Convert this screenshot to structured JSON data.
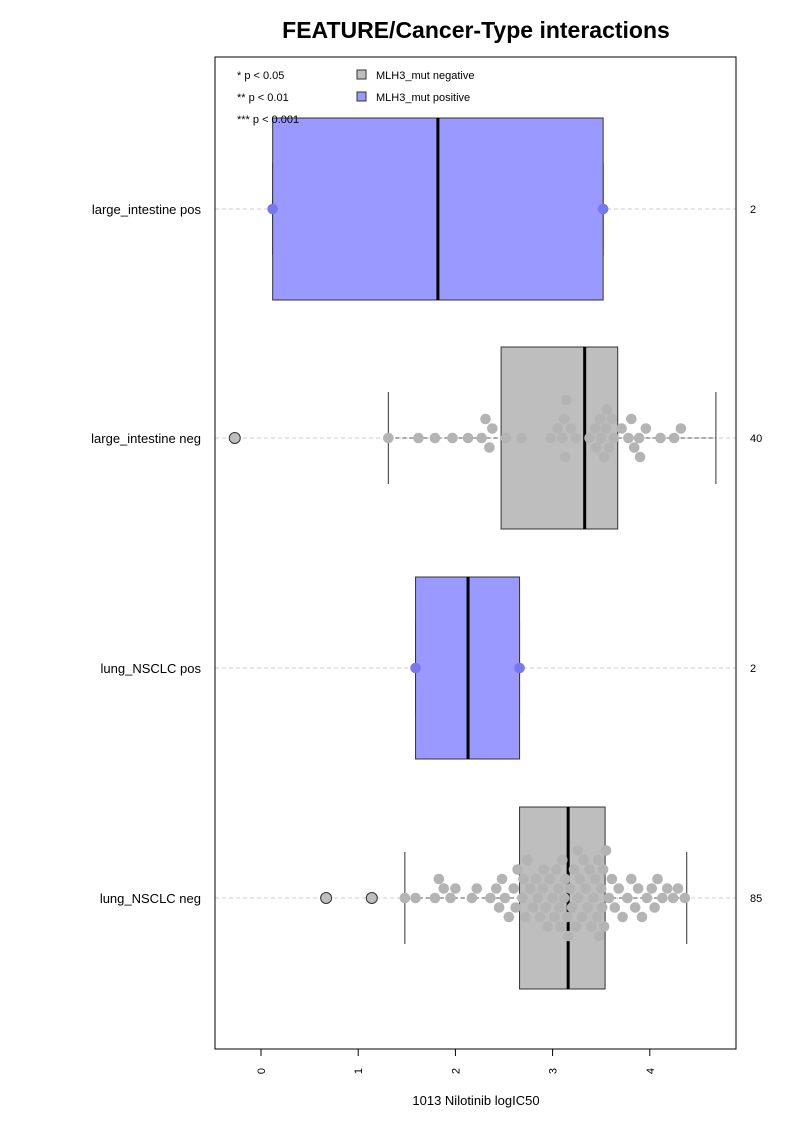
{
  "chart_data": {
    "type": "box",
    "title": "FEATURE/Cancer-Type interactions",
    "xlabel": "1013 Nilotinib logIC50",
    "ylabel": "",
    "xlim": [
      -0.5,
      4.9
    ],
    "xticks": [
      0,
      1,
      2,
      3,
      4
    ],
    "grid": "horizontal dashed lines at each category",
    "legend_position": "top-left",
    "significance_legend": [
      "* p < 0.05",
      "** p < 0.01",
      "*** p < 0.001"
    ],
    "legend": [
      {
        "label": "MLH3_mut negative",
        "color": "#bebebe"
      },
      {
        "label": "MLH3_mut positive",
        "color": "#9999ff"
      }
    ],
    "categories": [
      {
        "label": "large_intestine pos",
        "count": "2",
        "group": "positive",
        "stats": {
          "whisker_low": 0.12,
          "q1": 0.12,
          "median": 1.82,
          "q3": 3.52,
          "whisker_high": 3.52
        },
        "outliers": [],
        "points": [
          0.12,
          3.52
        ]
      },
      {
        "label": "large_intestine neg",
        "count": "40",
        "group": "negative",
        "stats": {
          "whisker_low": 1.31,
          "q1": 2.47,
          "median": 3.33,
          "q3": 3.67,
          "whisker_high": 4.68
        },
        "outliers": [
          -0.27
        ],
        "points": [
          1.31,
          1.62,
          1.79,
          1.97,
          2.13,
          2.27,
          2.35,
          2.31,
          2.38,
          2.52,
          2.68,
          2.98,
          3.05,
          3.12,
          3.19,
          3.14,
          3.1,
          3.13,
          3.24,
          3.38,
          3.44,
          3.49,
          3.53,
          3.56,
          3.55,
          3.5,
          3.45,
          3.58,
          3.61,
          3.63,
          3.71,
          3.78,
          3.84,
          3.89,
          3.9,
          3.81,
          3.96,
          4.11,
          4.25,
          4.32
        ]
      },
      {
        "label": "lung_NSCLC pos",
        "count": "2",
        "group": "positive",
        "stats": {
          "whisker_low": 1.59,
          "q1": 1.59,
          "median": 2.13,
          "q3": 2.66,
          "whisker_high": 2.66
        },
        "outliers": [],
        "points": [
          1.59,
          2.66
        ]
      },
      {
        "label": "lung_NSCLC neg",
        "count": "85",
        "group": "negative",
        "stats": {
          "whisker_low": 1.48,
          "q1": 2.66,
          "median": 3.16,
          "q3": 3.54,
          "whisker_high": 4.38
        },
        "outliers": [
          0.67,
          1.14
        ],
        "points": [
          1.48,
          1.59,
          1.79,
          1.83,
          1.88,
          1.95,
          2.0,
          2.17,
          2.22,
          2.36,
          2.42,
          2.45,
          2.48,
          2.51,
          2.55,
          2.6,
          2.64,
          2.69,
          2.7,
          2.72,
          2.77,
          2.8,
          2.83,
          2.85,
          2.87,
          2.9,
          2.93,
          2.95,
          2.97,
          3.0,
          3.02,
          3.04,
          3.06,
          3.08,
          3.1,
          3.12,
          3.13,
          3.15,
          3.16,
          3.18,
          3.2,
          3.22,
          3.24,
          3.26,
          3.28,
          3.3,
          3.32,
          3.34,
          3.36,
          3.38,
          3.4,
          3.42,
          3.44,
          3.46,
          3.48,
          3.5,
          3.51,
          3.52,
          3.53,
          3.55,
          3.58,
          3.61,
          3.64,
          3.68,
          3.72,
          3.77,
          3.81,
          3.85,
          3.88,
          3.92,
          3.97,
          4.02,
          4.05,
          4.08,
          4.13,
          4.18,
          4.24,
          4.29,
          4.36,
          2.62,
          2.74,
          3.26,
          3.07,
          2.91,
          3.47
        ]
      }
    ]
  }
}
